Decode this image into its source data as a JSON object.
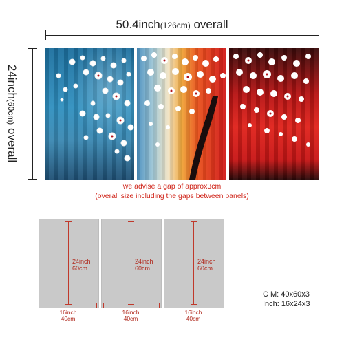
{
  "overall_width": {
    "main": "50.4inch",
    "metric": "(126cm)",
    "suffix": " overall"
  },
  "overall_height": {
    "main": "24inch",
    "metric": "(60cm)",
    "suffix": " overall"
  },
  "gap_note": {
    "line1": "we advise a gap of approx3cm",
    "line2": "(overall size including the gaps between panels)"
  },
  "panels": [
    {
      "height_in": "24inch",
      "height_cm": "60cm",
      "width_in": "16inch",
      "width_cm": "40cm"
    },
    {
      "height_in": "24inch",
      "height_cm": "60cm",
      "width_in": "16inch",
      "width_cm": "40cm"
    },
    {
      "height_in": "24inch",
      "height_cm": "60cm",
      "width_in": "16inch",
      "width_cm": "40cm"
    }
  ],
  "specs": {
    "cm": "C M: 40x60x3",
    "inch": "Inch: 16x24x3"
  },
  "colors": {
    "accent_red": "#d0261b",
    "panel_gray": "#c9c9c9"
  }
}
